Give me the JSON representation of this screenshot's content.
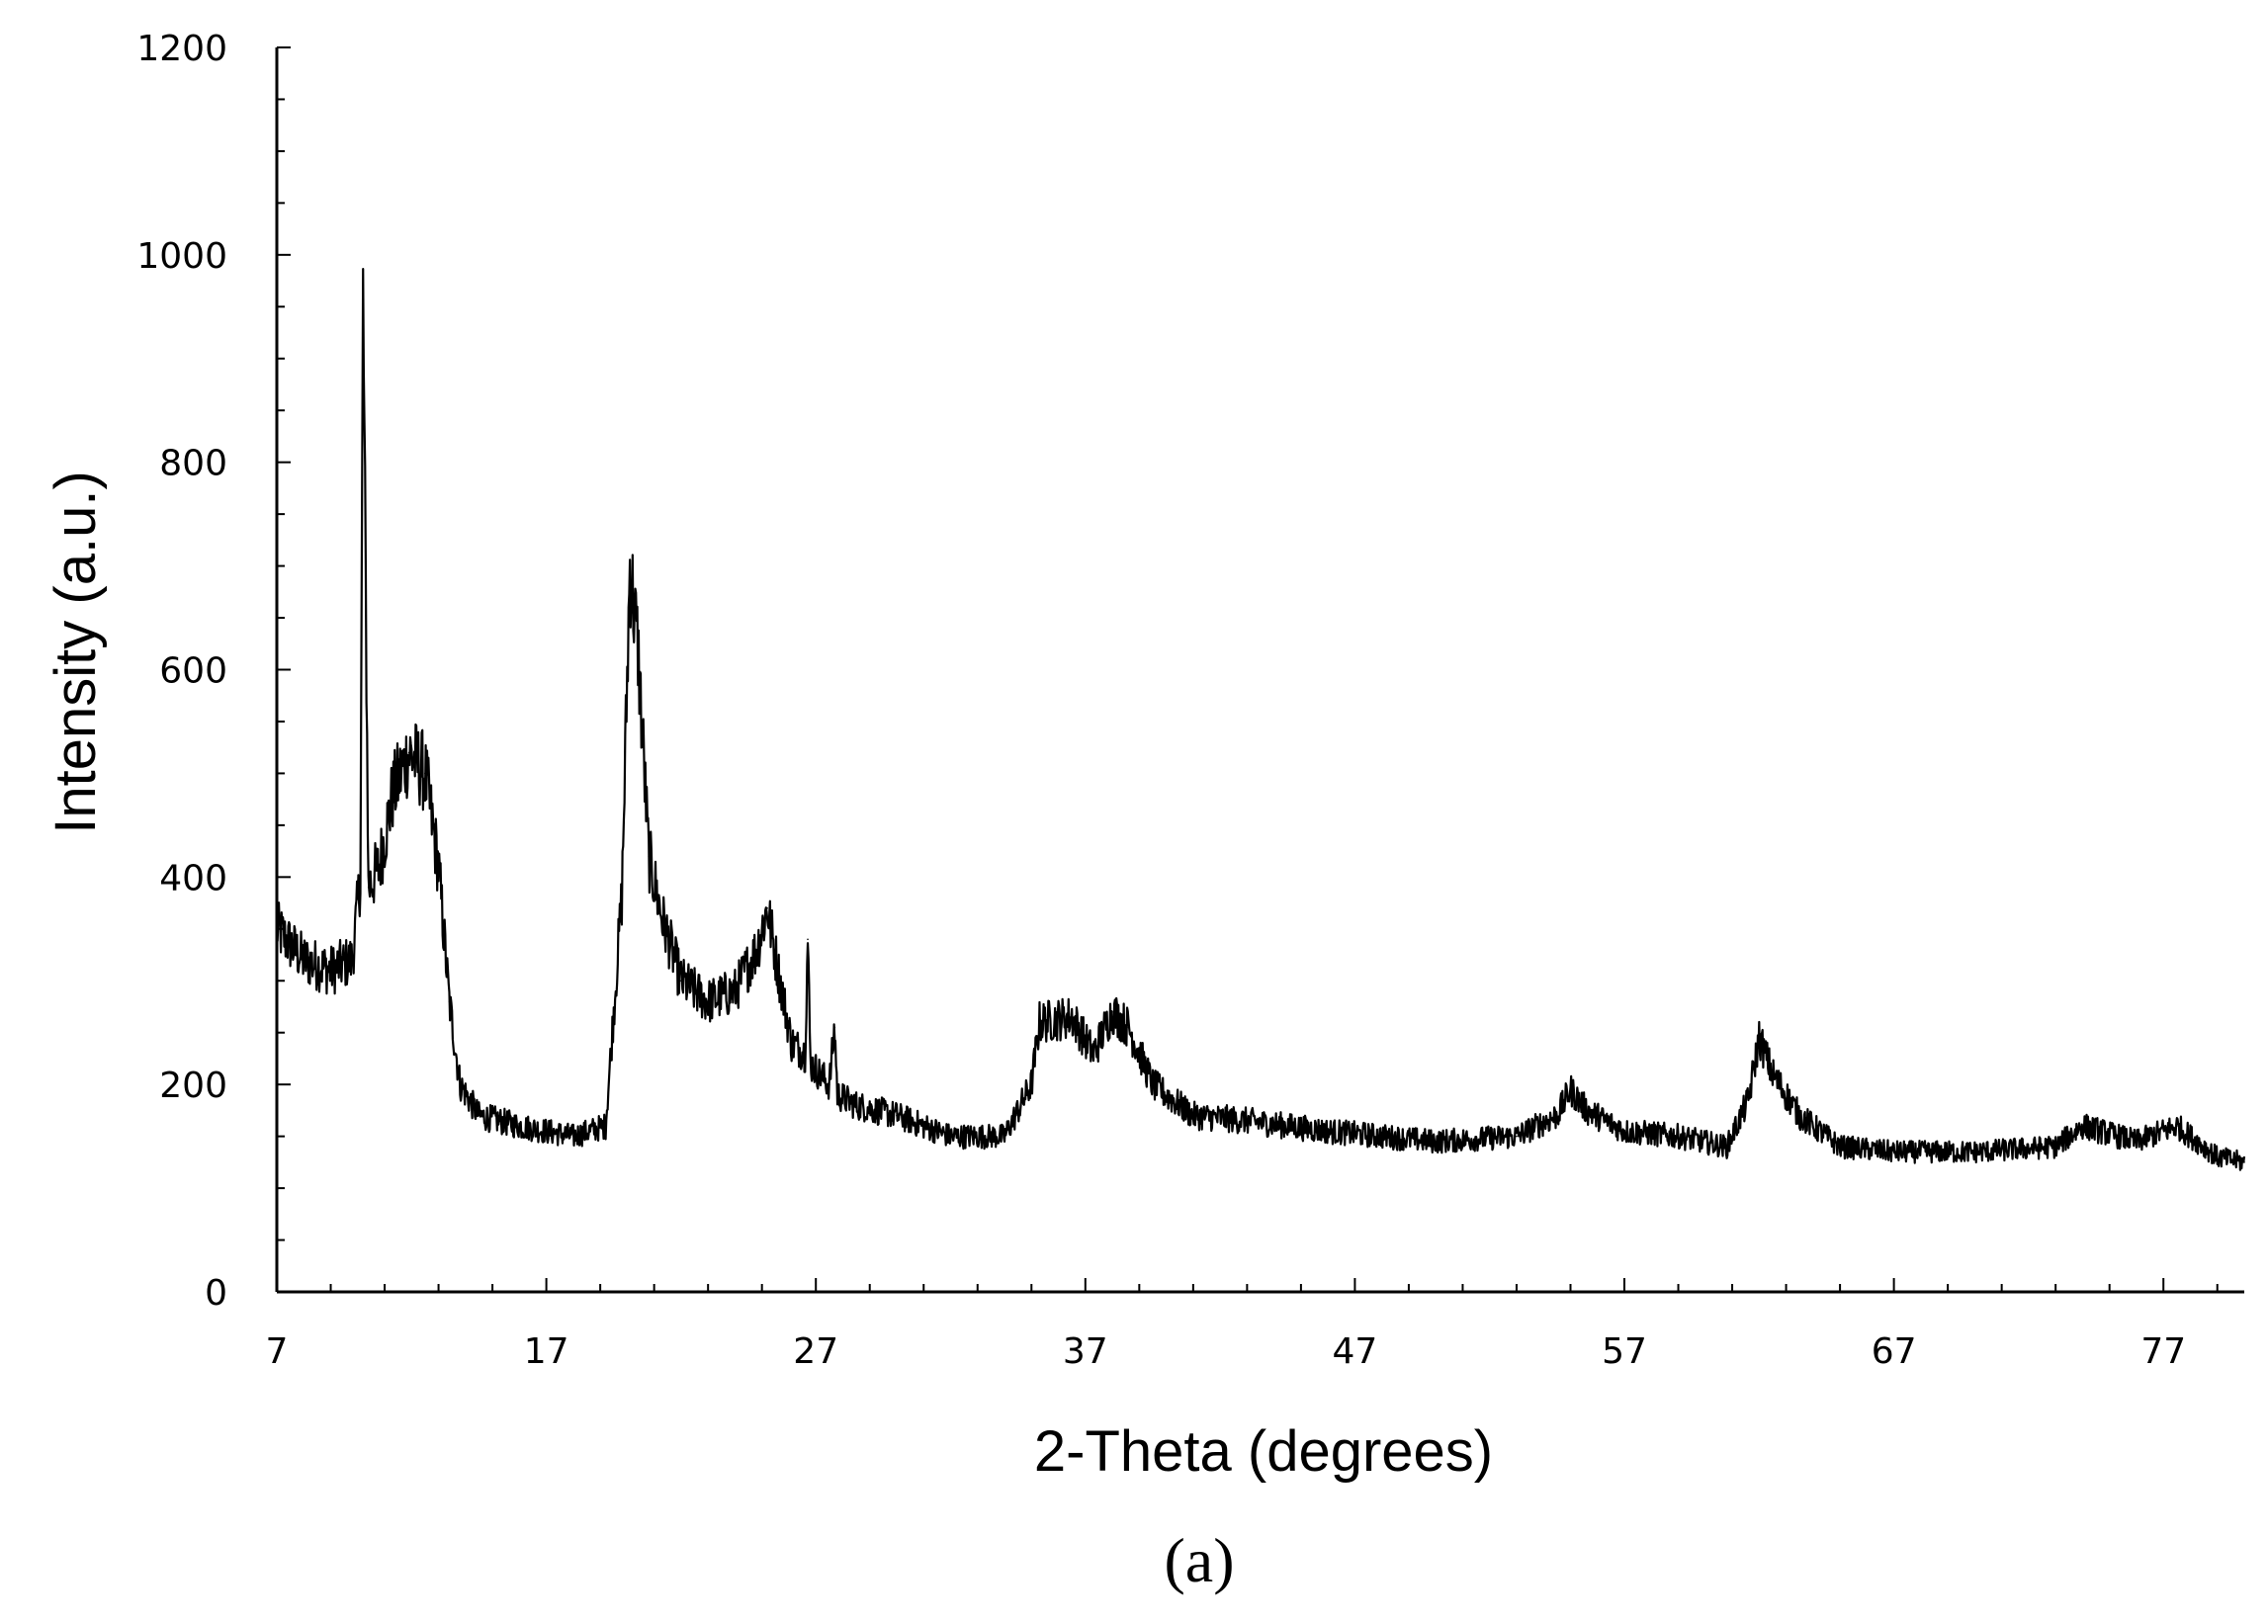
{
  "chart_data": {
    "type": "line",
    "xlabel": "2-Theta (degrees)",
    "ylabel": "Intensity (a.u.)",
    "panel_label": "(a)",
    "xlim": [
      7,
      80
    ],
    "ylim": [
      0,
      1200
    ],
    "x_ticks": [
      7,
      17,
      27,
      37,
      47,
      57,
      67,
      77
    ],
    "y_ticks": [
      0,
      200,
      400,
      600,
      800,
      1000,
      1200
    ],
    "grid": false,
    "legend": "none",
    "line_color": "#000000",
    "series": [
      {
        "x": [
          7,
          8,
          9,
          9.8,
          10.1,
          10.2,
          10.4,
          10.8,
          11.3,
          11.9,
          12.5,
          13.0,
          13.4,
          13.8,
          14.5,
          16,
          18,
          19.2,
          19.8,
          20.1,
          20.4,
          20.8,
          21.3,
          22,
          23,
          24,
          24.8,
          25.2,
          25.6,
          26.1,
          26.6,
          26.7,
          26.8,
          27.5,
          27.7,
          27.8,
          28.5,
          30,
          32,
          34,
          35.0,
          35.3,
          36.5,
          37.3,
          38,
          38.6,
          39.5,
          41,
          43,
          46,
          50,
          53,
          54.5,
          55.0,
          55.6,
          57,
          59,
          60.8,
          61.6,
          62.0,
          62.5,
          63.5,
          65,
          67,
          70,
          73,
          74,
          76,
          77.5,
          79,
          80
        ],
        "y": [
          350,
          320,
          310,
          320,
          400,
          960,
          390,
          410,
          480,
          520,
          500,
          410,
          280,
          200,
          170,
          160,
          150,
          160,
          380,
          700,
          620,
          420,
          360,
          300,
          280,
          290,
          330,
          370,
          310,
          240,
          230,
          340,
          220,
          200,
          255,
          190,
          180,
          170,
          150,
          150,
          200,
          260,
          265,
          230,
          270,
          255,
          200,
          170,
          165,
          155,
          145,
          150,
          170,
          195,
          175,
          155,
          150,
          140,
          185,
          245,
          210,
          170,
          140,
          135,
          135,
          140,
          160,
          145,
          160,
          130,
          125
        ]
      }
    ]
  }
}
